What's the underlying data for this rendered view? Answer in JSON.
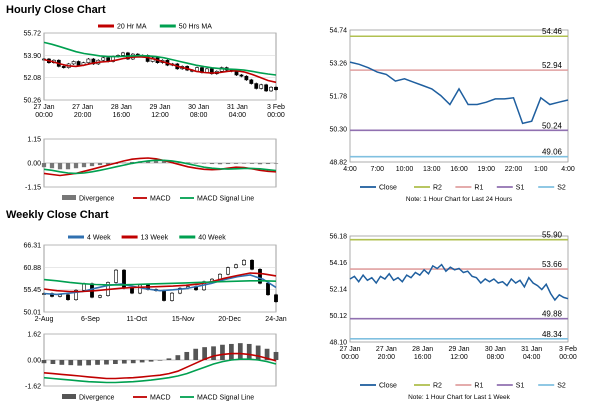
{
  "titles": {
    "hourly": "Hourly Close Chart",
    "weekly": "Weekly Close Chart"
  },
  "chart_data": [
    {
      "id": "hourly_price",
      "type": "line",
      "legend": [
        "20 Hr MA",
        "50 Hrs MA"
      ],
      "legend_placement": "top",
      "ylim": [
        50.26,
        55.72
      ],
      "yticks": [
        "55.72",
        "53.90",
        "52.08",
        "50.26"
      ],
      "xticks": [
        "27 Jan\n00:00",
        "27 Jan\n20:00",
        "28 Jan\n16:00",
        "29 Jan\n12:00",
        "30 Jan\n08:00",
        "31 Jan\n04:00",
        "3 Feb\n00:00"
      ],
      "grid": "horizontal",
      "series": [
        {
          "name": "20 Hr MA",
          "color": "#c00000",
          "values": [
            53.55,
            53.4,
            53.2,
            53.05,
            53.0,
            53.1,
            53.25,
            53.35,
            53.4,
            53.5,
            53.65,
            53.75,
            53.78,
            53.72,
            53.55,
            53.35,
            53.15,
            52.95,
            52.8,
            52.6,
            52.5,
            52.45,
            52.5,
            52.6,
            52.65,
            52.55,
            52.35,
            52.1,
            51.85,
            51.7
          ]
        },
        {
          "name": "50 Hrs MA",
          "color": "#00a050",
          "values": [
            54.95,
            54.8,
            54.6,
            54.4,
            54.2,
            54.05,
            53.95,
            53.85,
            53.8,
            53.8,
            53.82,
            53.85,
            53.88,
            53.85,
            53.8,
            53.7,
            53.55,
            53.4,
            53.25,
            53.1,
            52.98,
            52.88,
            52.82,
            52.78,
            52.75,
            52.7,
            52.6,
            52.48,
            52.38,
            52.3
          ]
        }
      ],
      "candles": [
        53.6,
        53.3,
        53.5,
        53.0,
        52.9,
        53.2,
        53.4,
        53.1,
        53.3,
        53.6,
        53.2,
        53.5,
        53.7,
        53.4,
        53.8,
        53.9,
        54.1,
        53.6,
        54.0,
        53.8,
        53.9,
        53.4,
        53.7,
        53.3,
        53.5,
        53.1,
        53.2,
        52.8,
        53.0,
        52.7,
        52.6,
        52.9,
        52.5,
        52.8,
        52.4,
        52.6,
        52.9,
        52.7,
        52.6,
        52.3,
        52.2,
        51.9,
        51.6,
        51.2,
        51.5,
        51.0,
        51.3,
        51.1
      ]
    },
    {
      "id": "hourly_macd",
      "type": "line",
      "legend": [
        "Divergence",
        "MACD",
        "MACD Signal Line"
      ],
      "legend_placement": "bottom",
      "ylim": [
        -1.15,
        1.15
      ],
      "yticks": [
        "1.15",
        "0.00",
        "-1.15"
      ],
      "series": [
        {
          "name": "Divergence",
          "color": "#777777",
          "values": [
            -0.2,
            -0.25,
            -0.3,
            -0.3,
            -0.25,
            -0.2,
            -0.15,
            -0.1,
            -0.08,
            -0.05,
            0.02,
            0.05,
            0.08,
            0.1,
            0.12,
            0.1,
            0.08,
            0.05,
            0.03,
            0.0,
            -0.02,
            -0.05,
            -0.06,
            -0.05,
            -0.04,
            -0.03,
            -0.04,
            -0.06,
            -0.05,
            -0.03
          ]
        },
        {
          "name": "MACD",
          "color": "#c00000",
          "values": [
            -0.5,
            -0.55,
            -0.6,
            -0.55,
            -0.5,
            -0.4,
            -0.3,
            -0.2,
            -0.1,
            0.0,
            0.1,
            0.18,
            0.22,
            0.24,
            0.2,
            0.12,
            0.02,
            -0.08,
            -0.18,
            -0.25,
            -0.3,
            -0.32,
            -0.3,
            -0.25,
            -0.2,
            -0.22,
            -0.28,
            -0.35,
            -0.4,
            -0.42
          ]
        },
        {
          "name": "MACD Signal Line",
          "color": "#00a050",
          "values": [
            -0.3,
            -0.35,
            -0.42,
            -0.48,
            -0.5,
            -0.48,
            -0.42,
            -0.35,
            -0.27,
            -0.18,
            -0.1,
            -0.02,
            0.05,
            0.1,
            0.13,
            0.13,
            0.1,
            0.04,
            -0.04,
            -0.12,
            -0.2,
            -0.25,
            -0.28,
            -0.29,
            -0.28,
            -0.26,
            -0.26,
            -0.28,
            -0.32,
            -0.36
          ]
        }
      ]
    },
    {
      "id": "hourly_24h",
      "type": "line",
      "legend": [
        "Close",
        "R2",
        "R1",
        "S1",
        "S2"
      ],
      "legend_placement": "bottom",
      "note": "Note: 1 Hour Chart for Last 24 Hours",
      "ylim": [
        48.82,
        54.74
      ],
      "yticks": [
        "54.74",
        "53.26",
        "51.78",
        "50.30",
        "48.82"
      ],
      "xticks": [
        "4:00",
        "7:00",
        "10:00",
        "13:00",
        "16:00",
        "19:00",
        "22:00",
        "1:00",
        "4:00"
      ],
      "levels": [
        {
          "name": "R2",
          "value": 54.46,
          "label": "54.46",
          "color": "#b0c050"
        },
        {
          "name": "R1",
          "value": 52.94,
          "label": "52.94",
          "color": "#e0a0a0"
        },
        {
          "name": "S1",
          "value": 50.24,
          "label": "50.24",
          "color": "#9070b0"
        },
        {
          "name": "S2",
          "value": 49.06,
          "label": "49.06",
          "color": "#80c0e0"
        }
      ],
      "series": [
        {
          "name": "Close",
          "color": "#1f5f9f",
          "values": [
            53.3,
            53.2,
            53.05,
            52.85,
            52.75,
            52.45,
            52.55,
            52.4,
            52.25,
            52.1,
            51.8,
            51.4,
            52.1,
            51.4,
            51.4,
            51.5,
            51.65,
            51.65,
            51.7,
            50.55,
            50.65,
            51.7,
            51.4,
            51.5,
            51.6
          ]
        }
      ]
    },
    {
      "id": "weekly_price",
      "type": "line",
      "legend": [
        "4 Week",
        "13 Week",
        "40 Week"
      ],
      "legend_placement": "top",
      "ylim": [
        50.01,
        66.31
      ],
      "yticks": [
        "66.31",
        "60.88",
        "55.45",
        "50.01"
      ],
      "xticks": [
        "2-Aug",
        "6-Sep",
        "11-Oct",
        "15-Nov",
        "20-Dec",
        "24-Jan"
      ],
      "series": [
        {
          "name": "4 Week",
          "color": "#3070b0",
          "values": [
            54.5,
            54.3,
            54.6,
            55.0,
            55.8,
            56.5,
            56.8,
            56.2,
            55.6,
            55.2,
            55.4,
            55.7,
            56.3,
            57.0,
            57.9,
            58.6,
            59.0,
            58.0,
            56.0
          ]
        },
        {
          "name": "13 Week",
          "color": "#c00000",
          "values": [
            55.6,
            55.2,
            55.0,
            55.0,
            55.2,
            55.5,
            55.8,
            56.0,
            56.1,
            56.2,
            56.3,
            56.5,
            56.8,
            57.4,
            58.2,
            58.9,
            59.5,
            59.3,
            58.8
          ]
        },
        {
          "name": "40 Week",
          "color": "#00a050",
          "values": [
            57.9,
            57.6,
            57.2,
            56.9,
            56.7,
            56.6,
            56.6,
            56.7,
            56.8,
            56.9,
            57.0,
            57.1,
            57.2,
            57.3,
            57.4,
            57.5,
            57.6,
            57.6,
            57.5
          ]
        }
      ],
      "candles": [
        54.5,
        53.8,
        54.2,
        53.0,
        55.3,
        56.9,
        53.6,
        54.0,
        57.2,
        60.2,
        55.8,
        54.6,
        56.6,
        55.5,
        55.2,
        52.8,
        54.6,
        55.8,
        56.2,
        55.4,
        57.4,
        58.0,
        59.2,
        60.8,
        61.5,
        62.6,
        60.4,
        57.0,
        54.2,
        52.5
      ]
    },
    {
      "id": "weekly_macd",
      "type": "line",
      "legend": [
        "Divergence",
        "MACD",
        "MACD Signal Line"
      ],
      "legend_placement": "bottom",
      "ylim": [
        -1.62,
        1.62
      ],
      "yticks": [
        "1.62",
        "0.00",
        "-1.62"
      ],
      "series": [
        {
          "name": "Divergence",
          "color": "#555555",
          "values": [
            -0.2,
            -0.25,
            -0.3,
            -0.32,
            -0.35,
            -0.33,
            -0.3,
            -0.28,
            -0.25,
            -0.22,
            -0.2,
            -0.15,
            -0.1,
            0.0,
            0.1,
            0.3,
            0.5,
            0.7,
            0.8,
            0.85,
            0.95,
            1.0,
            1.05,
            1.0,
            0.9,
            0.7,
            0.5
          ]
        },
        {
          "name": "MACD",
          "color": "#c00000",
          "values": [
            -0.8,
            -0.85,
            -0.9,
            -0.95,
            -1.0,
            -1.05,
            -1.1,
            -1.15,
            -1.15,
            -1.12,
            -1.1,
            -1.05,
            -1.0,
            -0.95,
            -0.85,
            -0.7,
            -0.45,
            -0.2,
            0.05,
            0.25,
            0.35,
            0.4,
            0.4,
            0.35,
            0.25,
            0.1,
            -0.05
          ]
        },
        {
          "name": "MACD Signal Line",
          "color": "#00a050",
          "values": [
            -1.1,
            -1.15,
            -1.2,
            -1.25,
            -1.3,
            -1.35,
            -1.38,
            -1.4,
            -1.4,
            -1.38,
            -1.35,
            -1.3,
            -1.25,
            -1.18,
            -1.1,
            -1.0,
            -0.85,
            -0.65,
            -0.45,
            -0.25,
            -0.1,
            0.0,
            0.05,
            0.05,
            0.0,
            -0.1,
            -0.25
          ]
        }
      ]
    },
    {
      "id": "weekly_1h",
      "type": "line",
      "legend": [
        "Close",
        "R2",
        "R1",
        "S1",
        "S2"
      ],
      "legend_placement": "bottom",
      "note": "Note: 1 Hour Chart for Last 1 Week",
      "ylim": [
        48.1,
        56.18
      ],
      "yticks": [
        "56.18",
        "54.16",
        "52.14",
        "50.12",
        "48.10"
      ],
      "xticks": [
        "27 Jan\n00:00",
        "27 Jan\n20:00",
        "28 Jan\n16:00",
        "29 Jan\n12:00",
        "30 Jan\n08:00",
        "31 Jan\n04:00",
        "3 Feb\n00:00"
      ],
      "levels": [
        {
          "name": "R2",
          "value": 55.9,
          "label": "55.90",
          "color": "#b0c050"
        },
        {
          "name": "R1",
          "value": 53.66,
          "label": "53.66",
          "color": "#e0a0a0"
        },
        {
          "name": "S1",
          "value": 49.88,
          "label": "49.88",
          "color": "#9070b0"
        },
        {
          "name": "S2",
          "value": 48.34,
          "label": "48.34",
          "color": "#80c0e0"
        }
      ],
      "series": [
        {
          "name": "Close",
          "color": "#1f5f9f",
          "values": [
            52.9,
            53.1,
            52.7,
            53.2,
            52.8,
            53.0,
            52.6,
            53.1,
            52.9,
            53.3,
            52.8,
            53.0,
            52.7,
            53.2,
            53.0,
            53.4,
            53.2,
            53.6,
            53.3,
            53.9,
            53.7,
            54.0,
            53.5,
            53.8,
            53.6,
            53.7,
            53.4,
            53.5,
            53.1,
            53.0,
            52.6,
            52.9,
            52.7,
            52.9,
            52.6,
            52.7,
            52.4,
            52.9,
            52.6,
            52.8,
            52.3,
            53.0,
            52.6,
            52.4,
            52.1,
            52.5,
            51.8,
            51.3,
            51.7,
            51.5,
            51.4
          ]
        }
      ]
    }
  ]
}
